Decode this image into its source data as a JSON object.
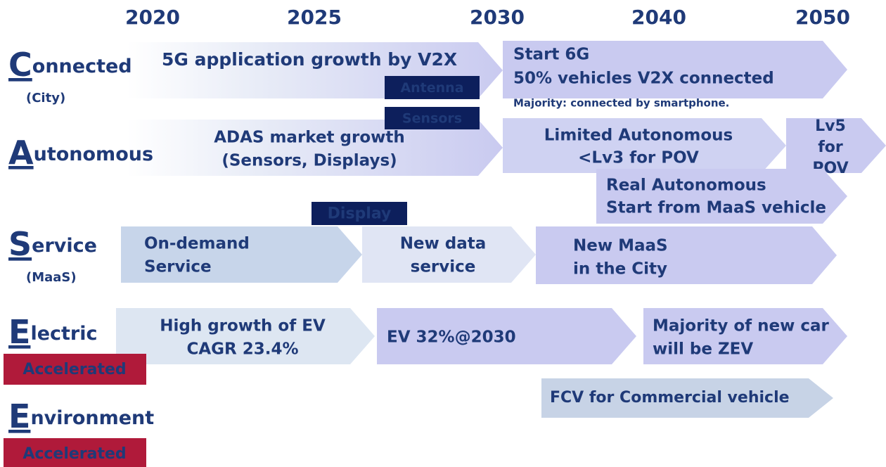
{
  "years": [
    "2020",
    "2025",
    "2030",
    "2040",
    "2050"
  ],
  "rows": [
    {
      "label": "Connected",
      "sub": "(City)"
    },
    {
      "label": "Autonomous"
    },
    {
      "label": "Service",
      "sub": "(MaaS)"
    },
    {
      "label": "Electric",
      "tag": "Accelerated"
    },
    {
      "label": "Environment",
      "tag": "Accelerated"
    }
  ],
  "arrows": [
    {
      "lines": [
        "5G application growth by V2X"
      ]
    },
    {
      "lines": [
        "Start 6G",
        "50% vehicles V2X connected"
      ]
    },
    {
      "lines": [
        "ADAS market growth",
        "(Sensors, Displays)"
      ]
    },
    {
      "lines": [
        "Limited Autonomous",
        "<Lv3  for POV"
      ]
    },
    {
      "lines": [
        "Lv5",
        "for",
        "POV"
      ]
    },
    {
      "lines": [
        "Real Autonomous",
        "Start from MaaS vehicle"
      ]
    },
    {
      "lines": [
        "On-demand",
        "Service"
      ]
    },
    {
      "lines": [
        "New data",
        "service"
      ]
    },
    {
      "lines": [
        "New MaaS",
        "in the City"
      ]
    },
    {
      "lines": [
        "High growth of EV",
        "CAGR 23.4%"
      ]
    },
    {
      "lines": [
        "EV 32%@2030"
      ]
    },
    {
      "lines": [
        "Majority of new car",
        "will be ZEV"
      ]
    },
    {
      "lines": [
        "FCV for Commercial vehicle"
      ]
    }
  ],
  "note": "Majority: connected by smartphone.",
  "tags": [
    "Antenna",
    "Sensors",
    "Display"
  ]
}
